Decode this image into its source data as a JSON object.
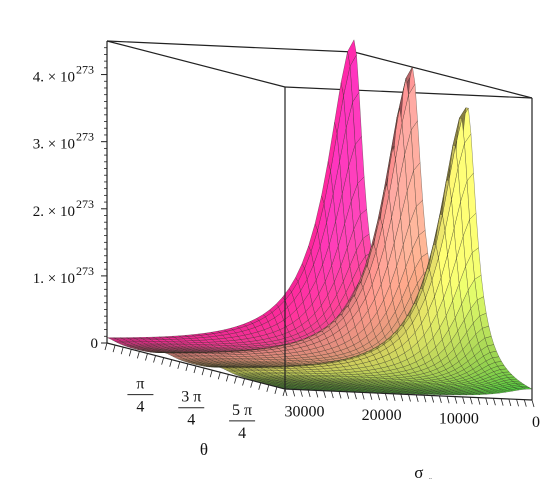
{
  "chart_data": {
    "type": "surface",
    "title": "",
    "zlabel": "",
    "xlabel": "θ",
    "ylabel": "σ",
    "ylabel_sub": "r",
    "z_ticks": [
      {
        "value": 0,
        "label": "0"
      },
      {
        "value": 1e+273,
        "mant": "1. × 10",
        "exp": "273"
      },
      {
        "value": 2e+273,
        "mant": "2. × 10",
        "exp": "273"
      },
      {
        "value": 3e+273,
        "mant": "3. × 10",
        "exp": "273"
      },
      {
        "value": 4e+273,
        "mant": "4. × 10",
        "exp": "273"
      }
    ],
    "theta_ticks": [
      {
        "value": 0.785398,
        "num": "π",
        "den": "4"
      },
      {
        "value": 2.356194,
        "num": "3 π",
        "den": "4"
      },
      {
        "value": 3.926991,
        "num": "5 π",
        "den": "4"
      }
    ],
    "sigma_ticks": [
      {
        "value": 30000,
        "label": "30000"
      },
      {
        "value": 20000,
        "label": "20000"
      },
      {
        "value": 10000,
        "label": "10000"
      },
      {
        "value": 0,
        "label": "0"
      }
    ],
    "ranges": {
      "theta": [
        0,
        5.5
      ],
      "sigma": [
        0,
        32000
      ],
      "z": [
        0,
        4.5e+273
      ]
    },
    "peaks": [
      {
        "theta": 0.0,
        "z": 4.5e+273
      },
      {
        "theta": 1.8,
        "z": 4.2e+273
      },
      {
        "theta": 3.5,
        "z": 3.95e+273
      }
    ],
    "colormap": [
      "#e0208a",
      "#d07676",
      "#bdbd55",
      "#4bc23a"
    ]
  }
}
